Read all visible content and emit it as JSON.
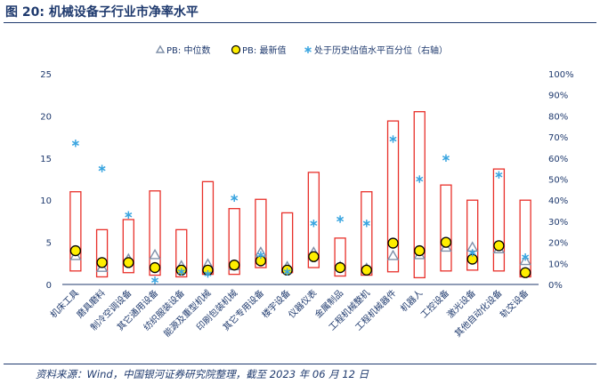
{
  "figure_title": "图 20:  机械设备子行业市净率水平",
  "source_note": "资料来源：Wind，中国银河证券研究院整理，截至 2023 年 06 月 12 日",
  "colors": {
    "text": "#1f3a6e",
    "range_box": "#e8302a",
    "median_marker": "#7f8fa8",
    "latest_fill": "#ffee00",
    "latest_stroke": "#000000",
    "percentile_marker": "#3aa5e0",
    "axis": "#1f3a6e"
  },
  "chart_data": {
    "type": "range-box-scatter",
    "title": "",
    "legend_position": "top",
    "legend": [
      {
        "key": "median",
        "label": "PB: 中位数",
        "marker": "triangle"
      },
      {
        "key": "latest",
        "label": "PB: 最新值",
        "marker": "circle"
      },
      {
        "key": "percentile",
        "label": "处于历史估值水平百分位（右轴）",
        "marker": "asterisk"
      }
    ],
    "left_axis": {
      "min": 0,
      "max": 25,
      "ticks": [
        "0",
        "5",
        "10",
        "15",
        "20",
        "25"
      ]
    },
    "right_axis": {
      "min": 0,
      "max": 1,
      "ticks": [
        "0%",
        "10%",
        "20%",
        "30%",
        "40%",
        "50%",
        "60%",
        "70%",
        "80%",
        "90%",
        "100%"
      ]
    },
    "categories": [
      "机床工具",
      "磨具磨料",
      "制冷空调设备",
      "其它通用设备",
      "纺织服装设备",
      "能源及重型机械",
      "印刷包装机械",
      "其它专用设备",
      "楼宇设备",
      "仪器仪表",
      "金属制品",
      "工程机械整机",
      "工程机械器件",
      "机器人",
      "工控设备",
      "激光设备",
      "其他自动化设备",
      "轨交设备"
    ],
    "range_high": [
      11.0,
      6.5,
      7.7,
      11.1,
      6.5,
      12.2,
      9.0,
      10.1,
      8.5,
      13.3,
      5.5,
      11.0,
      19.4,
      20.5,
      11.8,
      10.0,
      13.7,
      10.0
    ],
    "range_low": [
      1.6,
      0.9,
      1.4,
      1.1,
      0.9,
      1.2,
      1.2,
      2.0,
      1.4,
      2.0,
      1.0,
      1.1,
      1.5,
      0.8,
      1.6,
      1.7,
      1.6,
      0.9
    ],
    "median": [
      3.4,
      2.0,
      3.0,
      3.5,
      2.2,
      2.4,
      2.2,
      3.8,
      2.1,
      3.8,
      2.1,
      1.9,
      3.4,
      3.5,
      4.4,
      4.4,
      4.2,
      2.8
    ],
    "latest": [
      4.0,
      2.6,
      2.6,
      2.0,
      1.7,
      1.7,
      2.3,
      2.8,
      1.7,
      3.3,
      2.0,
      1.7,
      4.9,
      4.0,
      5.0,
      3.0,
      4.6,
      1.4
    ],
    "percentile": [
      0.67,
      0.55,
      0.33,
      0.02,
      0.06,
      0.05,
      0.41,
      0.14,
      0.06,
      0.29,
      0.31,
      0.29,
      0.69,
      0.5,
      0.6,
      0.15,
      0.52,
      0.13
    ]
  }
}
